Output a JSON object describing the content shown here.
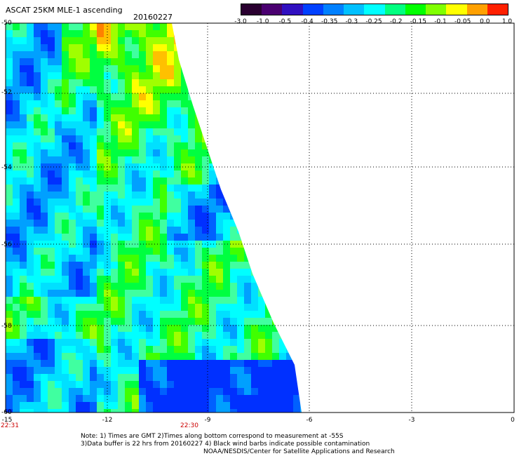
{
  "title": "ASCAT 25KM MLE-1 ascending",
  "date": "20160227",
  "colorbar": {
    "labels": [
      "-3.0",
      "-1.0",
      "-0.5",
      "-0.4",
      "-0.35",
      "-0.3",
      "-0.25",
      "-0.2",
      "-0.15",
      "-0.1",
      "-0.05",
      "0.0",
      "1.0"
    ],
    "colors": [
      "#2a0030",
      "#4a0070",
      "#3010c0",
      "#0040ff",
      "#0080ff",
      "#00c0ff",
      "#00ffff",
      "#00ff80",
      "#00ff00",
      "#80ff00",
      "#ffff00",
      "#ffa000",
      "#ff2000"
    ]
  },
  "axes": {
    "lat_ticks": [
      "-50",
      "-52",
      "-54",
      "-56",
      "-58",
      "-60"
    ],
    "lon_ticks": [
      "-15",
      "-12",
      "-9",
      "-6",
      "-3",
      "0"
    ],
    "time_labels": [
      "22:31",
      "22:30"
    ]
  },
  "notes": {
    "line1": "Note: 1) Times are GMT 2)Times along bottom correspond to measurement at -55S",
    "line2": "3)Data buffer is 22 hrs from 20160227 4) Black wind barbs indicate possible contamination",
    "credit": "NOAA/NESDIS/Center for Satellite Applications and Research"
  }
}
